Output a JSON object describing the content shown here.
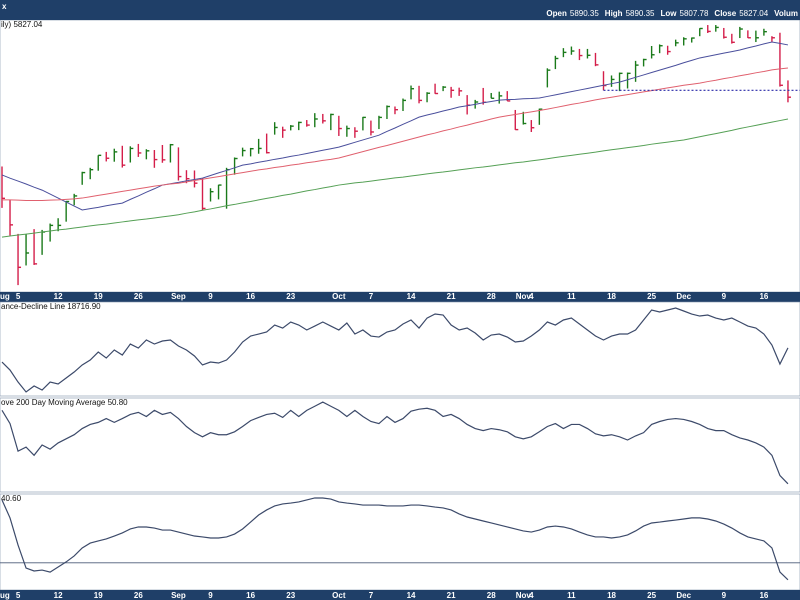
{
  "header": {
    "symbol_fragment": "x",
    "quote": [
      {
        "label": "Open",
        "value": 5890.35
      },
      {
        "label": "High",
        "value": 5890.35
      },
      {
        "label": "Low",
        "value": 5807.78
      },
      {
        "label": "Close",
        "value": 5827.04
      },
      {
        "label": "Volum"
      }
    ]
  },
  "chart_data": [
    {
      "type": "hlc",
      "label": "ily) 5827.04",
      "categories": [
        "Aug",
        null,
        "5",
        null,
        null,
        null,
        null,
        "12",
        null,
        null,
        null,
        null,
        "19",
        null,
        null,
        null,
        null,
        "26",
        null,
        null,
        null,
        null,
        "Sep",
        null,
        null,
        null,
        "9",
        null,
        null,
        null,
        null,
        "16",
        null,
        null,
        null,
        null,
        "23",
        null,
        null,
        null,
        null,
        null,
        "Oct",
        null,
        null,
        null,
        "7",
        null,
        null,
        null,
        null,
        "14",
        null,
        null,
        null,
        null,
        "21",
        null,
        null,
        null,
        null,
        "28",
        null,
        null,
        null,
        "Nov",
        "4",
        null,
        null,
        null,
        null,
        "11",
        null,
        null,
        null,
        null,
        "18",
        null,
        null,
        null,
        null,
        "25",
        null,
        null,
        null,
        "Dec",
        null,
        null,
        null,
        null,
        "9",
        null,
        null,
        null,
        null,
        "16",
        null,
        null,
        null
      ],
      "high": [
        5566,
        5440,
        5312,
        5312,
        5330,
        5327,
        5351,
        5371,
        5436,
        5463,
        5546,
        5561,
        5608,
        5621,
        5633,
        5644,
        5642,
        5651,
        5631,
        5628,
        5647,
        5651,
        5638,
        5552,
        5551,
        5522,
        5484,
        5497,
        5561,
        5600,
        5637,
        5636,
        5670,
        5690,
        5733,
        5716,
        5722,
        5735,
        5741,
        5767,
        5764,
        5765,
        5757,
        5720,
        5714,
        5753,
        5739,
        5757,
        5796,
        5792,
        5822,
        5871,
        5870,
        5846,
        5878,
        5869,
        5866,
        5863,
        5835,
        5817,
        5862,
        5843,
        5848,
        5850,
        5779,
        5772,
        5741,
        5784,
        5936,
        5983,
        6012,
        6018,
        6009,
        6009,
        5994,
        5925,
        5909,
        5920,
        5920,
        5964,
        5972,
        6020,
        6026,
        6021,
        6044,
        6053,
        6052,
        6087,
        6099,
        6099,
        6088,
        6066,
        6092,
        6079,
        6078,
        6085,
        6057,
        6070,
        5890.35
      ],
      "low": [
        5410,
        5306,
        5119,
        5193,
        5195,
        5233,
        5283,
        5322,
        5358,
        5420,
        5497,
        5518,
        5550,
        5585,
        5584,
        5562,
        5581,
        5602,
        5593,
        5561,
        5580,
        5581,
        5513,
        5503,
        5487,
        5402,
        5434,
        5442,
        5407,
        5535,
        5604,
        5604,
        5614,
        5615,
        5686,
        5674,
        5702,
        5703,
        5716,
        5714,
        5728,
        5703,
        5681,
        5678,
        5674,
        5702,
        5683,
        5707,
        5745,
        5763,
        5775,
        5819,
        5804,
        5808,
        5840,
        5850,
        5825,
        5832,
        5762,
        5784,
        5799,
        5823,
        5803,
        5813,
        5704,
        5724,
        5696,
        5723,
        5864,
        5933,
        5978,
        5987,
        5967,
        5973,
        5944,
        5853,
        5866,
        5850,
        5860,
        5885,
        5943,
        5973,
        5993,
        5987,
        6019,
        6022,
        6033,
        6057,
        6069,
        6074,
        6048,
        6029,
        6050,
        6050,
        6035,
        6059,
        6036,
        5867,
        5807.78
      ],
      "close": [
        5446,
        5346,
        5186,
        5240,
        5199,
        5319,
        5344,
        5344,
        5434,
        5455,
        5543,
        5554,
        5608,
        5597,
        5621,
        5571,
        5634,
        5617,
        5625,
        5592,
        5591,
        5648,
        5528,
        5520,
        5503,
        5408,
        5471,
        5496,
        5554,
        5596,
        5626,
        5633,
        5634,
        5618,
        5713,
        5703,
        5718,
        5732,
        5722,
        5745,
        5738,
        5762,
        5709,
        5709,
        5699,
        5751,
        5696,
        5751,
        5792,
        5780,
        5815,
        5859,
        5815,
        5842,
        5841,
        5865,
        5853,
        5851,
        5797,
        5809,
        5808,
        5823,
        5832,
        5813,
        5705,
        5728,
        5712,
        5782,
        5929,
        5973,
        5996,
        6001,
        5984,
        5985,
        5949,
        5871,
        5894,
        5917,
        5917,
        5948,
        5969,
        5987,
        6021,
        5999,
        6032,
        6047,
        6050,
        6086,
        6075,
        6090,
        6053,
        6034,
        6084,
        6051,
        6051,
        6074,
        6051,
        5872,
        5827.04
      ],
      "up_color": "#1a7a1a",
      "down_color": "#d41e4a",
      "series": [
        {
          "color": "#4a4f9c",
          "values": [
            5534,
            5522,
            5511,
            5500,
            5488,
            5477,
            5462,
            5447,
            5432,
            5417,
            5402,
            5407,
            5412,
            5418,
            5423,
            5428,
            5442,
            5455,
            5469,
            5482,
            5496,
            5501,
            5506,
            5512,
            5517,
            5522,
            5532,
            5542,
            5551,
            5561,
            5571,
            5576,
            5582,
            5587,
            5593,
            5598,
            5604,
            5609,
            5615,
            5621,
            5627,
            5633,
            5639,
            5648,
            5657,
            5666,
            5675,
            5684,
            5698,
            5711,
            5725,
            5738,
            5752,
            5760,
            5767,
            5775,
            5782,
            5790,
            5795,
            5800,
            5806,
            5811,
            5816,
            5818,
            5819,
            5821,
            5822,
            5824,
            5830,
            5836,
            5842,
            5848,
            5854,
            5860,
            5866,
            5872,
            5878,
            5884,
            5893,
            5902,
            5911,
            5920,
            5929,
            5938,
            5947,
            5957,
            5966,
            5975,
            5981,
            5987,
            5993,
            5999,
            6005,
            6013,
            6020,
            6028,
            6035,
            6030,
            6024
          ]
        },
        {
          "color": "#e0606e",
          "values": [
            5440,
            5440,
            5439,
            5438,
            5438,
            5438,
            5439,
            5440,
            5442,
            5444,
            5447,
            5452,
            5457,
            5462,
            5467,
            5472,
            5477,
            5482,
            5487,
            5492,
            5496,
            5500,
            5503,
            5508,
            5513,
            5518,
            5523,
            5528,
            5533,
            5538,
            5543,
            5548,
            5553,
            5557,
            5562,
            5566,
            5571,
            5575,
            5580,
            5584,
            5589,
            5593,
            5598,
            5606,
            5614,
            5622,
            5630,
            5638,
            5645,
            5653,
            5661,
            5669,
            5677,
            5685,
            5692,
            5700,
            5707,
            5715,
            5722,
            5730,
            5737,
            5745,
            5752,
            5757,
            5762,
            5767,
            5772,
            5777,
            5782,
            5788,
            5794,
            5800,
            5805,
            5811,
            5817,
            5822,
            5827,
            5832,
            5837,
            5842,
            5847,
            5852,
            5857,
            5862,
            5867,
            5872,
            5876,
            5880,
            5886,
            5891,
            5897,
            5902,
            5908,
            5913,
            5919,
            5924,
            5930,
            5934,
            5937
          ]
        },
        {
          "color": "#55a055",
          "values": [
            5300,
            5304,
            5308,
            5311,
            5315,
            5319,
            5323,
            5327,
            5330,
            5334,
            5338,
            5342,
            5346,
            5349,
            5353,
            5357,
            5361,
            5365,
            5368,
            5372,
            5376,
            5380,
            5384,
            5390,
            5395,
            5401,
            5406,
            5412,
            5418,
            5423,
            5429,
            5434,
            5440,
            5446,
            5451,
            5457,
            5462,
            5468,
            5474,
            5479,
            5485,
            5490,
            5496,
            5500,
            5504,
            5507,
            5511,
            5515,
            5519,
            5523,
            5526,
            5530,
            5534,
            5538,
            5542,
            5545,
            5549,
            5553,
            5557,
            5561,
            5564,
            5568,
            5572,
            5576,
            5580,
            5583,
            5587,
            5591,
            5595,
            5600,
            5604,
            5608,
            5612,
            5616,
            5620,
            5625,
            5629,
            5633,
            5637,
            5641,
            5645,
            5650,
            5654,
            5658,
            5662,
            5666,
            5672,
            5678,
            5684,
            5690,
            5696,
            5702,
            5709,
            5715,
            5721,
            5727,
            5733,
            5739,
            5745
          ]
        }
      ],
      "reference_line": {
        "value": 5853,
        "start_index": 75,
        "color": "#2a2aa8"
      },
      "ylim": [
        5093,
        6118
      ]
    },
    {
      "type": "line",
      "label": "ance-Decline Line 18716.90",
      "color": "#3c4a6a",
      "ylim": [
        18000,
        19400
      ],
      "values": [
        18506,
        18387,
        18208,
        18060,
        18149,
        18089,
        18208,
        18179,
        18268,
        18357,
        18462,
        18536,
        18655,
        18566,
        18685,
        18610,
        18774,
        18715,
        18834,
        18774,
        18819,
        18834,
        18745,
        18685,
        18596,
        18462,
        18506,
        18491,
        18536,
        18655,
        18804,
        18893,
        18923,
        18953,
        19057,
        19012,
        19102,
        19057,
        18983,
        19042,
        19102,
        19042,
        18983,
        19087,
        18923,
        18983,
        18893,
        18878,
        18953,
        18983,
        19072,
        19132,
        19012,
        19161,
        19221,
        19206,
        19057,
        18983,
        19012,
        18938,
        18834,
        18908,
        18923,
        18878,
        18804,
        18819,
        18893,
        18983,
        19102,
        19057,
        19132,
        19161,
        19072,
        18983,
        18893,
        18834,
        18893,
        18923,
        18923,
        18983,
        19132,
        19281,
        19251,
        19281,
        19310,
        19266,
        19221,
        19191,
        19206,
        19161,
        19132,
        19161,
        19102,
        19042,
        19012,
        18923,
        18759,
        18476,
        18716.9
      ]
    },
    {
      "type": "line",
      "label": "ove 200 Day Moving Average 50.80",
      "color": "#3c4a6a",
      "ylim": [
        48,
        80
      ],
      "values": [
        75.8,
        71.3,
        61.9,
        63.3,
        60.5,
        64,
        62.6,
        64.7,
        66.1,
        67.5,
        69.6,
        71,
        71.7,
        73,
        71.7,
        73,
        74.4,
        75.1,
        73.7,
        75.8,
        74.4,
        75.1,
        73,
        70.3,
        68.2,
        66.8,
        68.2,
        67.5,
        67.5,
        68.5,
        70.3,
        72.3,
        73.4,
        74.4,
        74.8,
        73.4,
        75.8,
        73.7,
        75.8,
        77.2,
        78.6,
        77.2,
        75.8,
        73.7,
        75.8,
        73.7,
        72,
        71.3,
        73.7,
        71.7,
        73,
        75.5,
        76.2,
        76.5,
        75.8,
        73.7,
        74.4,
        73,
        71,
        69.6,
        68.9,
        69.6,
        69.2,
        68.5,
        66.8,
        66.1,
        66.8,
        68.5,
        70.3,
        71.3,
        69.6,
        71,
        71,
        69.6,
        67.8,
        67.1,
        67.5,
        66.8,
        65.7,
        67.1,
        68.2,
        71,
        72,
        72.7,
        73,
        72.7,
        72,
        71,
        69.6,
        68.9,
        68.9,
        67.5,
        66.4,
        65.7,
        64.7,
        63.3,
        60.5,
        53.6,
        50.8
      ]
    },
    {
      "type": "line",
      "label": "40.60",
      "color": "#3c4a6a",
      "ylim": [
        35,
        88
      ],
      "hline": 50,
      "values": [
        84.7,
        74.8,
        59.8,
        47.1,
        45.5,
        46,
        44.9,
        47.7,
        50.5,
        53.8,
        58.2,
        60.9,
        62.1,
        63.2,
        64.8,
        66.5,
        68.7,
        69.8,
        69.8,
        69.2,
        68.1,
        68.1,
        67,
        65.9,
        64.8,
        64.3,
        63.7,
        63.7,
        64.3,
        65.9,
        68.7,
        72.5,
        76.4,
        79.2,
        81.4,
        82.5,
        83,
        83.6,
        84.7,
        85.8,
        85.8,
        85.2,
        83.6,
        83,
        82.5,
        81.9,
        81.9,
        81.9,
        81.4,
        81.4,
        81.4,
        81.9,
        81.9,
        81.4,
        80.8,
        80.3,
        79.2,
        77,
        75.3,
        74.2,
        73.1,
        72,
        70.9,
        69.8,
        68.7,
        67.6,
        67,
        68.1,
        69.8,
        70.3,
        69.8,
        68.7,
        67,
        65.4,
        64.3,
        64.3,
        63.7,
        64.3,
        65.4,
        67.6,
        70.3,
        72,
        72.5,
        73.1,
        73.6,
        74.2,
        74.8,
        74.8,
        74.2,
        73.1,
        71.4,
        69.2,
        66.5,
        64.3,
        63.2,
        62.1,
        58.2,
        44.9,
        40.6
      ]
    }
  ]
}
